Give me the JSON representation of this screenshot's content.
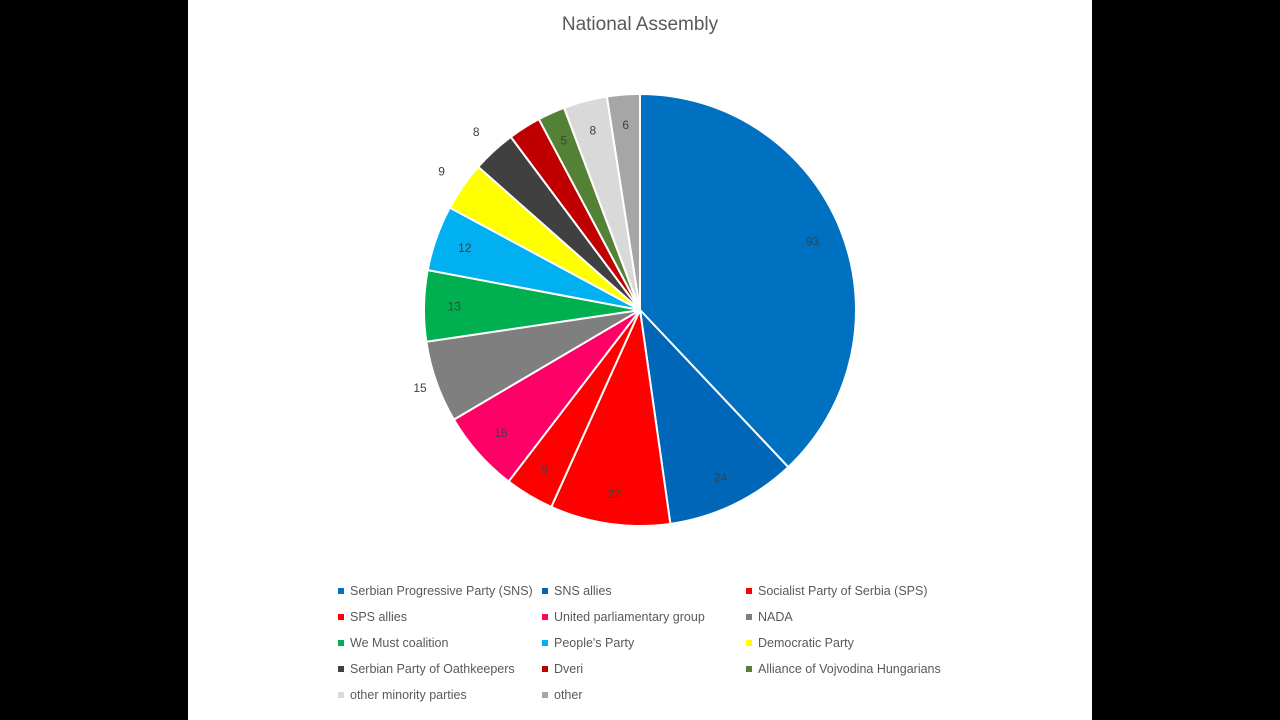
{
  "chart_data": {
    "type": "pie",
    "title": "National Assembly",
    "legend_position": "bottom",
    "categories": [
      "Serbian Progressive Party (SNS)",
      "SNS allies",
      "Socialist Party of Serbia (SPS)",
      "SPS allies",
      "United parliamentary group",
      "NADA",
      "We Must coalition",
      "People's Party",
      "Democratic Party",
      "Serbian Party of Oathkeepers",
      "Dveri",
      "Alliance of Vojvodina Hungarians",
      "other minority parties",
      "other"
    ],
    "values": [
      93,
      24,
      22,
      9,
      15,
      15,
      13,
      12,
      9,
      8,
      6,
      5,
      8,
      6
    ],
    "labels": [
      "93",
      "24",
      "22",
      "9",
      "15",
      "15",
      "13",
      "12",
      "9",
      "8",
      "",
      "5",
      "8",
      "6"
    ],
    "colors": [
      "#0070C0",
      "#0066B8",
      "#FF0000",
      "#FF0000",
      "#FF0066",
      "#7F7F7F",
      "#00B050",
      "#00B0F0",
      "#FFFF00",
      "#404040",
      "#C00000",
      "#538135",
      "#D9D9D9",
      "#A6A6A6"
    ]
  }
}
